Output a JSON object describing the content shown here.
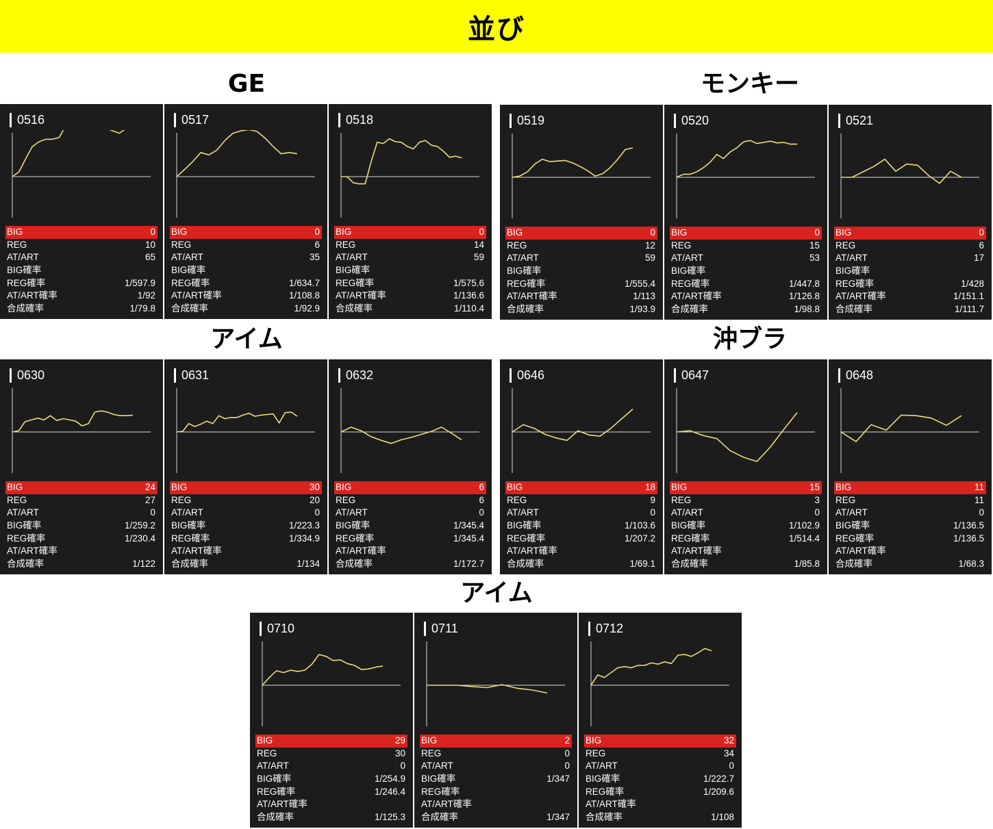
{
  "page_title": "並び",
  "colors": {
    "banner": "#ffff00",
    "card_bg": "#1c1c1c",
    "line": "#f0dc78",
    "big_row": "#d9231f"
  },
  "stat_labels": {
    "big": "BIG",
    "reg": "REG",
    "at": "AT/ART",
    "big_rate": "BIG確率",
    "reg_rate": "REG確率",
    "at_rate": "AT/ART確率",
    "total_rate": "合成確率"
  },
  "groups": [
    {
      "title": "GE",
      "cards": [
        0,
        1,
        2
      ]
    },
    {
      "title": "モンキー",
      "cards": [
        3,
        4,
        5
      ]
    },
    {
      "title": "アイム",
      "cards": [
        6,
        7,
        8
      ]
    },
    {
      "title": "沖ブラ",
      "cards": [
        9,
        10,
        11
      ]
    },
    {
      "title": "アイム",
      "cards": [
        12,
        13,
        14
      ]
    }
  ],
  "chart_data": [
    {
      "type": "line",
      "machine": "0516",
      "big": "0",
      "reg": "10",
      "at": "65",
      "big_rate": "",
      "reg_rate": "1/597.9",
      "at_rate": "1/92",
      "total_rate": "1/79.8",
      "values": [
        0,
        8,
        30,
        50,
        58,
        62,
        62,
        65,
        85,
        95,
        93,
        90,
        86,
        84,
        80,
        76,
        72,
        80,
        78
      ]
    },
    {
      "type": "line",
      "machine": "0517",
      "big": "0",
      "reg": "6",
      "at": "35",
      "big_rate": "",
      "reg_rate": "1/634.7",
      "at_rate": "1/108.8",
      "total_rate": "1/92.9",
      "values": [
        0,
        12,
        25,
        40,
        36,
        44,
        60,
        72,
        76,
        78,
        75,
        64,
        50,
        38,
        40,
        38
      ]
    },
    {
      "type": "line",
      "machine": "0518",
      "big": "0",
      "reg": "14",
      "at": "59",
      "big_rate": "",
      "reg_rate": "1/575.6",
      "at_rate": "1/136.6",
      "total_rate": "1/110.4",
      "values": [
        0,
        0,
        -10,
        -12,
        -12,
        25,
        57,
        55,
        63,
        58,
        57,
        50,
        46,
        57,
        60,
        52,
        50,
        42,
        32,
        34,
        31
      ]
    },
    {
      "type": "line",
      "machine": "0519",
      "big": "0",
      "reg": "12",
      "at": "59",
      "big_rate": "",
      "reg_rate": "1/555.4",
      "at_rate": "1/113",
      "total_rate": "1/93.9",
      "values": [
        0,
        2,
        9,
        22,
        30,
        26,
        27,
        28,
        24,
        18,
        11,
        2,
        6,
        16,
        30,
        46,
        49
      ]
    },
    {
      "type": "line",
      "machine": "0520",
      "big": "0",
      "reg": "15",
      "at": "53",
      "big_rate": "",
      "reg_rate": "1/447.8",
      "at_rate": "1/126.8",
      "total_rate": "1/98.8",
      "values": [
        0,
        5,
        5,
        9,
        16,
        25,
        38,
        31,
        42,
        49,
        59,
        61,
        56,
        58,
        60,
        57,
        58,
        55,
        55
      ]
    },
    {
      "type": "line",
      "machine": "0521",
      "big": "0",
      "reg": "6",
      "at": "17",
      "big_rate": "",
      "reg_rate": "1/428",
      "at_rate": "1/151.1",
      "total_rate": "1/111.7",
      "values": [
        0,
        0,
        9,
        18,
        30,
        10,
        22,
        20,
        3,
        -10,
        10,
        0
      ]
    },
    {
      "type": "line",
      "machine": "0630",
      "big": "24",
      "reg": "27",
      "at": "0",
      "big_rate": "1/259.2",
      "reg_rate": "1/230.4",
      "at_rate": "",
      "total_rate": "1/122",
      "values": [
        0,
        2,
        17,
        20,
        23,
        20,
        27,
        19,
        22,
        20,
        18,
        10,
        14,
        33,
        35,
        33,
        29,
        27,
        27,
        28
      ]
    },
    {
      "type": "line",
      "machine": "0631",
      "big": "30",
      "reg": "20",
      "at": "0",
      "big_rate": "1/223.3",
      "reg_rate": "1/334.9",
      "at_rate": "",
      "total_rate": "1/134",
      "values": [
        0,
        1,
        14,
        9,
        13,
        18,
        14,
        27,
        22,
        24,
        24,
        28,
        31,
        26,
        28,
        29,
        30,
        15,
        32,
        33,
        26
      ]
    },
    {
      "type": "line",
      "machine": "0632",
      "big": "6",
      "reg": "6",
      "at": "0",
      "big_rate": "1/345.4",
      "reg_rate": "1/345.4",
      "at_rate": "",
      "total_rate": "1/172.7",
      "values": [
        0,
        8,
        2,
        -8,
        -14,
        -19,
        -13,
        -9,
        -4,
        1,
        8,
        -2,
        -13
      ]
    },
    {
      "type": "line",
      "machine": "0646",
      "big": "18",
      "reg": "9",
      "at": "0",
      "big_rate": "1/103.6",
      "reg_rate": "1/207.2",
      "at_rate": "",
      "total_rate": "1/69.1",
      "values": [
        0,
        12,
        6,
        -4,
        -10,
        -14,
        2,
        -5,
        -7,
        6,
        22,
        38
      ]
    },
    {
      "type": "line",
      "machine": "0647",
      "big": "15",
      "reg": "3",
      "at": "0",
      "big_rate": "1/102.9",
      "reg_rate": "1/514.4",
      "at_rate": "",
      "total_rate": "1/85.8",
      "values": [
        0,
        2,
        -6,
        -11,
        -31,
        -42,
        -49,
        -25,
        4,
        32
      ]
    },
    {
      "type": "line",
      "machine": "0648",
      "big": "11",
      "reg": "11",
      "at": "0",
      "big_rate": "1/136.5",
      "reg_rate": "1/136.5",
      "at_rate": "",
      "total_rate": "1/68.3",
      "values": [
        0,
        -16,
        12,
        3,
        28,
        27,
        23,
        11,
        27
      ]
    },
    {
      "type": "line",
      "machine": "0710",
      "big": "29",
      "reg": "30",
      "at": "0",
      "big_rate": "1/254.9",
      "reg_rate": "1/246.4",
      "at_rate": "",
      "total_rate": "1/125.3",
      "values": [
        0,
        13,
        24,
        21,
        25,
        23,
        25,
        35,
        51,
        48,
        41,
        42,
        36,
        33,
        26,
        27,
        30,
        32
      ]
    },
    {
      "type": "line",
      "machine": "0711",
      "big": "2",
      "reg": "0",
      "at": "0",
      "big_rate": "1/347",
      "reg_rate": "",
      "at_rate": "",
      "total_rate": "1/347",
      "values": [
        0,
        0,
        0,
        -2,
        -4,
        1,
        -5,
        -8,
        -13
      ]
    },
    {
      "type": "line",
      "machine": "0712",
      "big": "32",
      "reg": "34",
      "at": "0",
      "big_rate": "1/222.7",
      "reg_rate": "1/209.6",
      "at_rate": "",
      "total_rate": "1/108",
      "values": [
        0,
        17,
        13,
        21,
        29,
        31,
        29,
        33,
        33,
        37,
        35,
        39,
        36,
        50,
        51,
        48,
        54,
        61,
        57
      ]
    }
  ]
}
